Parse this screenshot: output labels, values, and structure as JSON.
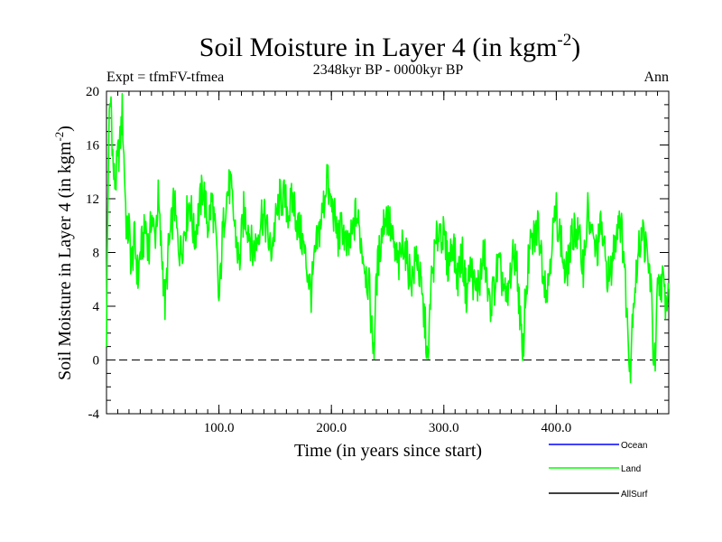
{
  "chart_data": {
    "type": "line",
    "title": "Soil Moisture in Layer 4 (in kgm",
    "title_sup": "-2",
    "title_close": ")",
    "subtitle": "2348kyr BP - 0000kyr BP",
    "left_label": "Expt = tfmFV-tfmea",
    "right_label": "Ann",
    "xlabel": "Time (in years since start)",
    "ylabel": "Soil Moisture in Layer 4 (in kgm",
    "ylabel_sup": "-2",
    "ylabel_close": ")",
    "xlim": [
      0,
      500
    ],
    "ylim": [
      -4,
      20
    ],
    "xticks": [
      100,
      200,
      300,
      400
    ],
    "xtick_labels": [
      "100.0",
      "200.0",
      "300.0",
      "400.0"
    ],
    "yticks": [
      -4,
      0,
      4,
      8,
      12,
      16,
      20
    ],
    "ytick_labels": [
      "-4",
      "0",
      "4",
      "8",
      "12",
      "16",
      "20"
    ],
    "reference_line": 0,
    "legend": [
      {
        "name": "Ocean",
        "color": "#0000ff"
      },
      {
        "name": "Land",
        "color": "#00ff00"
      },
      {
        "name": "AllSurf",
        "color": "#000000"
      }
    ],
    "series": [
      {
        "name": "Land",
        "color": "#00ff00",
        "anchors": [
          [
            0,
            2
          ],
          [
            2,
            17
          ],
          [
            4,
            19.5
          ],
          [
            6,
            14
          ],
          [
            8,
            13
          ],
          [
            10,
            15
          ],
          [
            12,
            16
          ],
          [
            14,
            18.5
          ],
          [
            16,
            14
          ],
          [
            18,
            9
          ],
          [
            20,
            10
          ],
          [
            22,
            7
          ],
          [
            25,
            9
          ],
          [
            28,
            6
          ],
          [
            30,
            8
          ],
          [
            33,
            9
          ],
          [
            35,
            10
          ],
          [
            38,
            8
          ],
          [
            40,
            11
          ],
          [
            43,
            9
          ],
          [
            46,
            12
          ],
          [
            48,
            9
          ],
          [
            50,
            7
          ],
          [
            52,
            4
          ],
          [
            55,
            8
          ],
          [
            58,
            10
          ],
          [
            60,
            12
          ],
          [
            63,
            9
          ],
          [
            66,
            8
          ],
          [
            70,
            10
          ],
          [
            74,
            12
          ],
          [
            78,
            9
          ],
          [
            82,
            11
          ],
          [
            86,
            13
          ],
          [
            90,
            10
          ],
          [
            94,
            12
          ],
          [
            98,
            8
          ],
          [
            100,
            4
          ],
          [
            103,
            9
          ],
          [
            106,
            12
          ],
          [
            110,
            13
          ],
          [
            114,
            10
          ],
          [
            118,
            7
          ],
          [
            122,
            11
          ],
          [
            126,
            10
          ],
          [
            130,
            8
          ],
          [
            134,
            9
          ],
          [
            138,
            11
          ],
          [
            142,
            10
          ],
          [
            146,
            8
          ],
          [
            150,
            10
          ],
          [
            154,
            12
          ],
          [
            158,
            12
          ],
          [
            162,
            11
          ],
          [
            166,
            12
          ],
          [
            170,
            10
          ],
          [
            174,
            9
          ],
          [
            178,
            7
          ],
          [
            182,
            5
          ],
          [
            186,
            8
          ],
          [
            190,
            10
          ],
          [
            194,
            12
          ],
          [
            196,
            14
          ],
          [
            198,
            12
          ],
          [
            202,
            11
          ],
          [
            206,
            9
          ],
          [
            210,
            10
          ],
          [
            214,
            8
          ],
          [
            218,
            9
          ],
          [
            222,
            11
          ],
          [
            226,
            9
          ],
          [
            230,
            7
          ],
          [
            234,
            5
          ],
          [
            236,
            2
          ],
          [
            238,
            1
          ],
          [
            240,
            6
          ],
          [
            244,
            9
          ],
          [
            248,
            11
          ],
          [
            252,
            10
          ],
          [
            256,
            8
          ],
          [
            260,
            7
          ],
          [
            264,
            9
          ],
          [
            268,
            7
          ],
          [
            272,
            6
          ],
          [
            276,
            8
          ],
          [
            280,
            5
          ],
          [
            284,
            2
          ],
          [
            286,
            -1
          ],
          [
            288,
            5
          ],
          [
            292,
            8
          ],
          [
            296,
            10
          ],
          [
            300,
            9
          ],
          [
            304,
            7
          ],
          [
            308,
            9
          ],
          [
            312,
            6
          ],
          [
            316,
            8
          ],
          [
            320,
            5
          ],
          [
            324,
            7
          ],
          [
            328,
            5
          ],
          [
            332,
            6
          ],
          [
            336,
            8
          ],
          [
            340,
            4
          ],
          [
            344,
            5
          ],
          [
            348,
            7
          ],
          [
            352,
            6
          ],
          [
            356,
            4
          ],
          [
            360,
            7
          ],
          [
            364,
            8
          ],
          [
            368,
            3
          ],
          [
            370,
            -0.5
          ],
          [
            372,
            4
          ],
          [
            376,
            8
          ],
          [
            380,
            9
          ],
          [
            384,
            10
          ],
          [
            388,
            7
          ],
          [
            392,
            5
          ],
          [
            396,
            9
          ],
          [
            400,
            11
          ],
          [
            404,
            9
          ],
          [
            408,
            6
          ],
          [
            412,
            8
          ],
          [
            416,
            10
          ],
          [
            420,
            9
          ],
          [
            424,
            7
          ],
          [
            428,
            11
          ],
          [
            432,
            9
          ],
          [
            436,
            8
          ],
          [
            440,
            10
          ],
          [
            444,
            7
          ],
          [
            448,
            6
          ],
          [
            452,
            9
          ],
          [
            456,
            11
          ],
          [
            460,
            8
          ],
          [
            463,
            3
          ],
          [
            466,
            -0.5
          ],
          [
            468,
            4
          ],
          [
            472,
            7
          ],
          [
            476,
            10
          ],
          [
            480,
            8
          ],
          [
            484,
            6
          ],
          [
            486,
            1
          ],
          [
            488,
            -0.5
          ],
          [
            490,
            5
          ],
          [
            494,
            6
          ],
          [
            498,
            4
          ],
          [
            500,
            6
          ]
        ]
      }
    ]
  }
}
